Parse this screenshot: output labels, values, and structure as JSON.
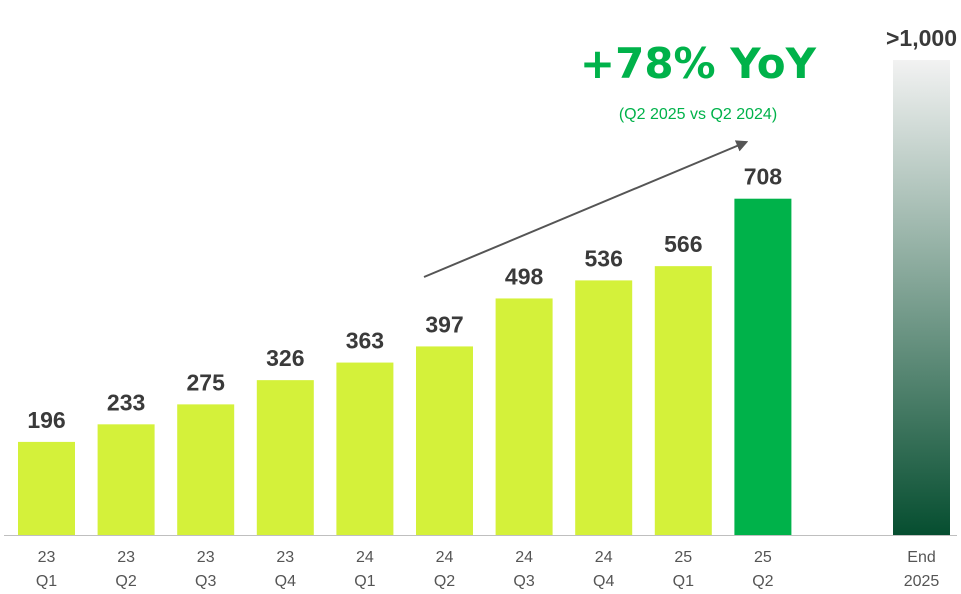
{
  "chart_data": {
    "type": "bar",
    "categories": [
      [
        "23",
        "Q1"
      ],
      [
        "23",
        "Q2"
      ],
      [
        "23",
        "Q3"
      ],
      [
        "23",
        "Q4"
      ],
      [
        "24",
        "Q1"
      ],
      [
        "24",
        "Q2"
      ],
      [
        "24",
        "Q3"
      ],
      [
        "24",
        "Q4"
      ],
      [
        "25",
        "Q1"
      ],
      [
        "25",
        "Q2"
      ],
      [
        "End",
        "2025"
      ]
    ],
    "values": [
      196,
      233,
      275,
      326,
      363,
      397,
      498,
      536,
      566,
      708,
      1000
    ],
    "value_labels": [
      "196",
      "233",
      "275",
      "326",
      "363",
      "397",
      "498",
      "536",
      "566",
      "708",
      ">1,000"
    ],
    "bar_styles": [
      "standard",
      "standard",
      "standard",
      "standard",
      "standard",
      "standard",
      "standard",
      "standard",
      "standard",
      "highlight",
      "projection"
    ],
    "ylim": [
      0,
      1000
    ],
    "grid": false,
    "legend": "none",
    "annotation": {
      "headline": "+78% YoY",
      "subheadline": "(Q2 2025 vs Q2 2024)",
      "arrow_from_category": 5,
      "arrow_to_category": 9
    },
    "colors": {
      "standard": "#d4f13a",
      "highlight": "#00b24a",
      "projection_top": "#f2f2f2",
      "projection_bottom": "#064e30",
      "headline": "#00b24a",
      "value_label": "#3a3a3a",
      "tick_label": "#555555",
      "axis": "#bfbfbf",
      "arrow": "#555555"
    }
  }
}
